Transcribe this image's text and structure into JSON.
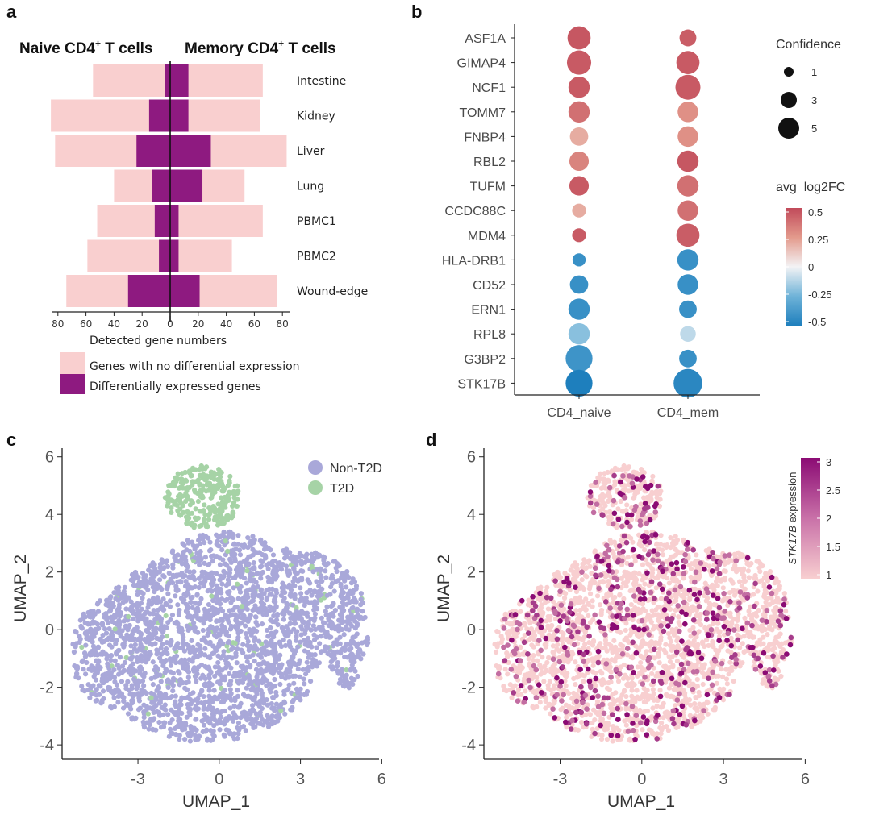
{
  "panel_letters": {
    "a": "a",
    "b": "b",
    "c": "c",
    "d": "d"
  },
  "chart_data": [
    {
      "type": "bar",
      "panel": "a",
      "left_header": "Naive CD4",
      "left_header_sup": "+",
      "left_header_suffix": " T cells",
      "right_header": "Memory CD4",
      "right_header_sup": "+",
      "right_header_suffix": " T cells",
      "xlabel": "Detected gene numbers",
      "x_ticks": [
        "80",
        "60",
        "40",
        "20",
        "0",
        "20",
        "40",
        "60",
        "80"
      ],
      "xlim": [
        -85,
        85
      ],
      "categories": [
        "Intestine",
        "Kidney",
        "Liver",
        "Lung",
        "PBMC1",
        "PBMC2",
        "Wound-edge"
      ],
      "series": [
        {
          "name": "Genes with no differential expression",
          "color": "#f9cfcf",
          "naive": [
            55,
            85,
            82,
            40,
            52,
            59,
            74
          ],
          "memory": [
            66,
            64,
            83,
            53,
            66,
            44,
            76
          ]
        },
        {
          "name": "Differentially expressed genes",
          "color": "#8e1a80",
          "naive": [
            4,
            15,
            24,
            13,
            11,
            8,
            30
          ],
          "memory": [
            13,
            13,
            29,
            23,
            6,
            6,
            21
          ]
        }
      ]
    },
    {
      "type": "scatter",
      "subtype": "dotplot",
      "panel": "b",
      "categories_x": [
        "CD4_naive",
        "CD4_mem"
      ],
      "genes": [
        "ASF1A",
        "GIMAP4",
        "NCF1",
        "TOMM7",
        "FNBP4",
        "RBL2",
        "TUFM",
        "CCDC88C",
        "MDM4",
        "HLA-DRB1",
        "CD52",
        "ERN1",
        "RPL8",
        "G3BP2",
        "STK17B"
      ],
      "naive_log2fc": [
        0.46,
        0.45,
        0.45,
        0.38,
        0.2,
        0.32,
        0.45,
        0.2,
        0.45,
        -0.42,
        -0.42,
        -0.42,
        -0.2,
        -0.4,
        -0.5
      ],
      "naive_confidence": [
        4.5,
        4.8,
        4.0,
        4.0,
        3.2,
        3.5,
        3.5,
        2.0,
        2.0,
        1.8,
        3.2,
        4.0,
        4.0,
        5.5,
        5.5
      ],
      "mem_log2fc": [
        0.44,
        0.45,
        0.45,
        0.28,
        0.28,
        0.46,
        0.38,
        0.38,
        0.44,
        -0.42,
        -0.42,
        -0.42,
        -0.1,
        -0.42,
        -0.46
      ],
      "mem_confidence": [
        2.8,
        4.5,
        5.0,
        3.8,
        3.8,
        4.0,
        4.0,
        3.8,
        4.5,
        4.0,
        3.8,
        3.0,
        2.5,
        3.0,
        6.0
      ],
      "size_legend_title": "Confidence",
      "size_legend": [
        "1",
        "3",
        "5"
      ],
      "color_legend_title": "avg_log2FC",
      "color_ticks": [
        "0.5",
        "0.25",
        "0",
        "-0.25",
        "-0.5"
      ]
    },
    {
      "type": "scatter",
      "panel": "c",
      "xlabel": "UMAP_1",
      "ylabel": "UMAP_2",
      "x_ticks": [
        "-3",
        "0",
        "3",
        "6"
      ],
      "y_ticks": [
        "6",
        "4",
        "2",
        "0",
        "-2",
        "-4"
      ],
      "xlim": [
        -5.8,
        5.9
      ],
      "ylim": [
        -4.5,
        6.3
      ],
      "series": [
        {
          "name": "Non-T2D",
          "color": "#a9a8d9"
        },
        {
          "name": "T2D",
          "color": "#a6d3a6"
        }
      ]
    },
    {
      "type": "scatter",
      "panel": "d",
      "xlabel": "UMAP_1",
      "ylabel": "UMAP_2",
      "x_ticks": [
        "-3",
        "0",
        "3",
        "6"
      ],
      "y_ticks": [
        "6",
        "4",
        "2",
        "0",
        "-2",
        "-4"
      ],
      "xlim": [
        -5.8,
        5.9
      ],
      "ylim": [
        -4.5,
        6.3
      ],
      "colorbar_title_italic": "STK17B",
      "colorbar_title_rest": " expression",
      "colorbar_ticks": [
        "3",
        "2.5",
        "2",
        "1.5",
        "1"
      ],
      "colors": {
        "low": "#f8cfd0",
        "high": "#8b0b74"
      }
    }
  ]
}
